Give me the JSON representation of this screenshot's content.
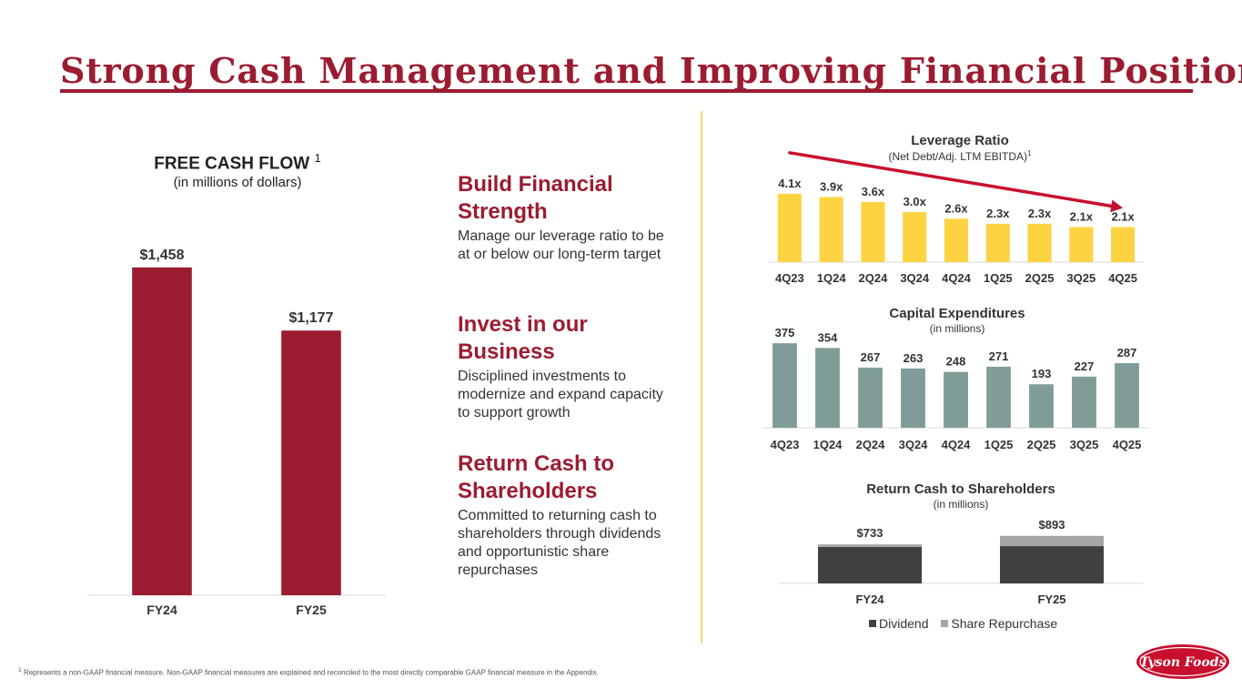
{
  "title": "Strong Cash Management and Improving Financial Position",
  "free_cash_flow": {
    "title": "FREE CASH FLOW",
    "footnote_mark": "1",
    "subtitle": "(in millions of dollars)"
  },
  "pillars": [
    {
      "heading": "Build Financial Strength",
      "text": "Manage our leverage ratio to be at or below our long-term target"
    },
    {
      "heading": "Invest in our Business",
      "text": "Disciplined investments to modernize and expand capacity to support growth"
    },
    {
      "heading": "Return Cash to Shareholders",
      "text": "Committed to returning cash to shareholders through dividends and opportunistic share repurchases"
    }
  ],
  "leverage": {
    "title": "Leverage Ratio",
    "subtitle": "(Net Debt/Adj. LTM EBITDA)",
    "subtitle_mark": "1"
  },
  "capex": {
    "title": "Capital Expenditures",
    "subtitle": "(in millions)"
  },
  "returns": {
    "title": "Return Cash to Shareholders",
    "subtitle": "(in millions)"
  },
  "footnote": {
    "mark": "1",
    "text": "Represents a non-GAAP financial measure. Non-GAAP financial measures are explained and reconciled to the most directly comparable GAAP financial measure in the Appendix."
  },
  "logo": {
    "text": "Tyson Foods"
  },
  "colors": {
    "fcf": "#9b1c31",
    "leverage": "#fdd342",
    "capex": "#7f9c98",
    "dividend": "#404040",
    "repurchase": "#a6a6a6",
    "trend": "#c8102e",
    "title": "#9b1c31"
  },
  "chart_data": [
    {
      "type": "bar",
      "id": "free-cash-flow",
      "categories": [
        "FY24",
        "FY25"
      ],
      "values": [
        1458,
        1177
      ],
      "data_labels": [
        "$1,458",
        "$1,177"
      ],
      "ylim": [
        0,
        1700
      ]
    },
    {
      "type": "bar",
      "id": "leverage-ratio",
      "categories": [
        "4Q23",
        "1Q24",
        "2Q24",
        "3Q24",
        "4Q24",
        "1Q25",
        "2Q25",
        "3Q25",
        "4Q25"
      ],
      "values": [
        4.1,
        3.9,
        3.6,
        3.0,
        2.6,
        2.3,
        2.3,
        2.1,
        2.1
      ],
      "data_labels": [
        "4.1x",
        "3.9x",
        "3.6x",
        "3.0x",
        "2.6x",
        "2.3x",
        "2.3x",
        "2.1x",
        "2.1x"
      ],
      "ylim": [
        0,
        4.8
      ],
      "annotation": "downward trend arrow"
    },
    {
      "type": "bar",
      "id": "capital-expenditures",
      "categories": [
        "4Q23",
        "1Q24",
        "2Q24",
        "3Q24",
        "4Q24",
        "1Q25",
        "2Q25",
        "3Q25",
        "4Q25"
      ],
      "values": [
        375,
        354,
        267,
        263,
        248,
        271,
        193,
        227,
        287
      ],
      "data_labels": [
        "375",
        "354",
        "267",
        "263",
        "248",
        "271",
        "193",
        "227",
        "287"
      ],
      "ylim": [
        0,
        420
      ]
    },
    {
      "type": "bar",
      "stacked": true,
      "id": "return-cash",
      "categories": [
        "FY24",
        "FY25"
      ],
      "series": [
        {
          "name": "Dividend",
          "values": [
            685,
            700
          ]
        },
        {
          "name": "Share Repurchase",
          "values": [
            48,
            193
          ]
        }
      ],
      "totals": [
        733,
        893
      ],
      "data_labels": [
        "$733",
        "$893"
      ],
      "ylim": [
        0,
        1300
      ],
      "legend": "bottom"
    }
  ]
}
